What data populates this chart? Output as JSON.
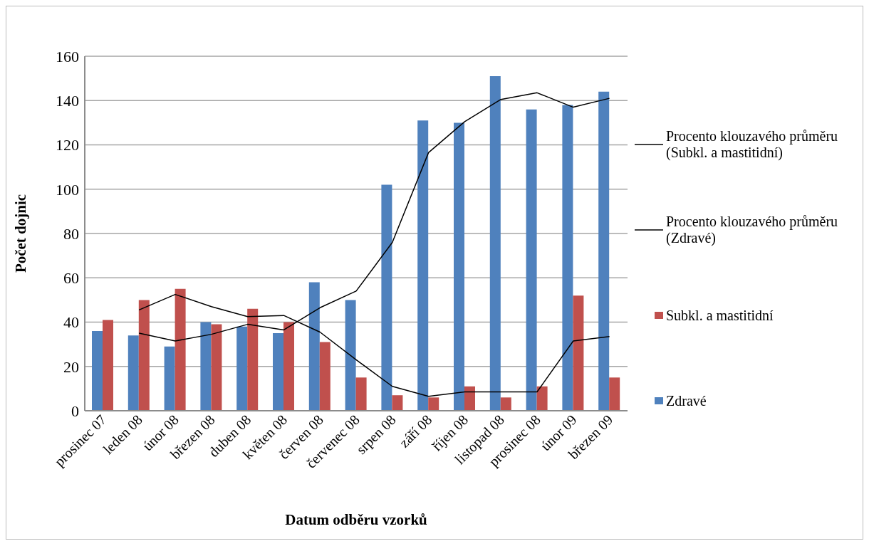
{
  "chart_data": {
    "type": "bar",
    "xlabel": "Datum odběru vzorků",
    "ylabel": "Počet dojnic",
    "categories": [
      "prosinec 07",
      "leden 08",
      "únor 08",
      "březen 08",
      "duben 08",
      "květen 08",
      "červen 08",
      "červenec 08",
      "srpen 08",
      "září 08",
      "říjen 08",
      "listopad 08",
      "prosinec 08",
      "únor 09",
      "březen 09"
    ],
    "series": [
      {
        "name": "Zdravé",
        "color": "#4f81bd",
        "values": [
          36,
          34,
          29,
          40,
          38,
          35,
          58,
          50,
          102,
          131,
          130,
          151,
          136,
          138,
          144
        ]
      },
      {
        "name": "Subkl. a mastitidní",
        "color": "#c0504d",
        "values": [
          41,
          50,
          55,
          39,
          46,
          40,
          31,
          15,
          7,
          6,
          11,
          6,
          11,
          52,
          15
        ]
      },
      {
        "name": "Procento klouzavého průměru (Zdravé)",
        "type": "line",
        "color": "#000000",
        "values": [
          null,
          35,
          31.5,
          34.5,
          39,
          36.5,
          46.5,
          54,
          76,
          116.5,
          130.5,
          140.5,
          143.5,
          137,
          141
        ]
      },
      {
        "name": "Procento klouzavého průměru (Subkl. a mastitidní)",
        "type": "line",
        "color": "#000000",
        "values": [
          null,
          45.5,
          52.5,
          47,
          42.5,
          43,
          35.5,
          23,
          11,
          6.5,
          8.5,
          8.5,
          8.5,
          31.5,
          33.5
        ]
      }
    ],
    "ylim": [
      0,
      160
    ],
    "yticks": [
      0,
      20,
      40,
      60,
      80,
      100,
      120,
      140,
      160
    ],
    "grid": "y",
    "legend": "right",
    "marker": "none"
  }
}
